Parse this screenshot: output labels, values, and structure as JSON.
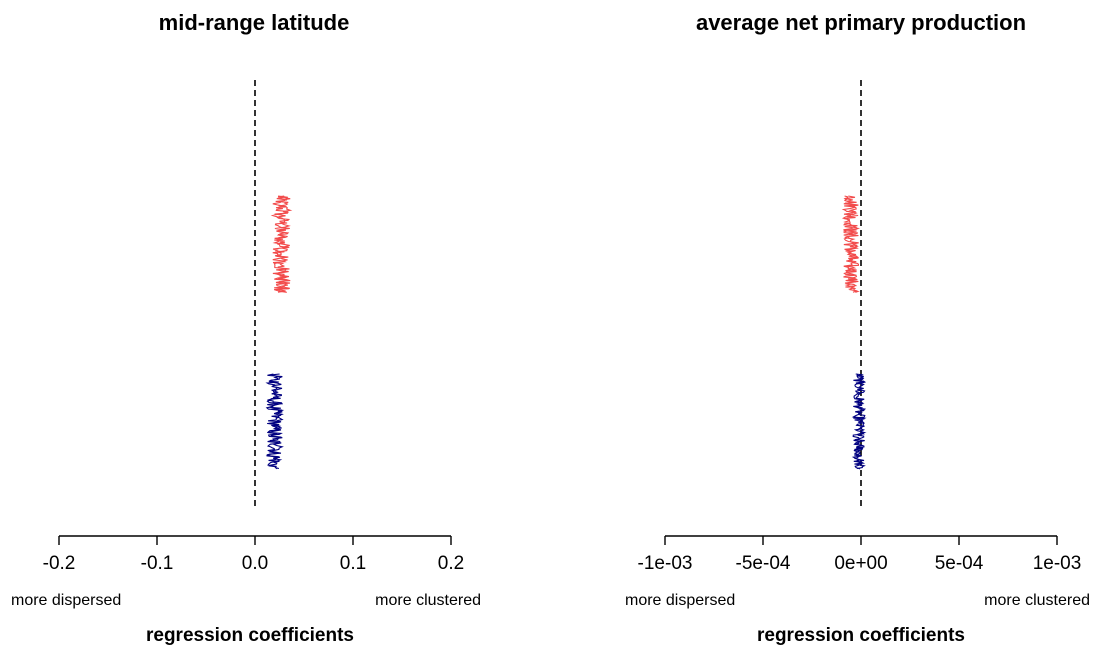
{
  "chart_data": [
    {
      "type": "scatter",
      "title": "mid-range latitude",
      "xlabel": "regression coefficients",
      "ylabel": "",
      "xlim": [
        -0.2,
        0.2
      ],
      "x_ticks": [
        -0.2,
        -0.1,
        0.0,
        0.1,
        0.2
      ],
      "x_tick_labels": [
        "-0.2",
        "-0.1",
        "0.0",
        "0.1",
        "0.2"
      ],
      "left_annotation": "more dispersed",
      "right_annotation": "more clustered",
      "reference_line_x": 0.0,
      "grid": false,
      "series": [
        {
          "color": "#f24a4a",
          "x_range": [
            0.018,
            0.036
          ],
          "x_center": 0.027,
          "y_position": "upper"
        },
        {
          "color": "#000080",
          "x_range": [
            0.012,
            0.028
          ],
          "x_center": 0.019,
          "y_position": "lower"
        }
      ]
    },
    {
      "type": "scatter",
      "title": "average net primary production",
      "xlabel": "regression coefficients",
      "ylabel": "",
      "xlim": [
        -0.001,
        0.001
      ],
      "x_ticks": [
        -0.001,
        -0.0005,
        0.0,
        0.0005,
        0.001
      ],
      "x_tick_labels": [
        "-1e-03",
        "-5e-04",
        "0e+00",
        "5e-04",
        "1e-03"
      ],
      "left_annotation": "more dispersed",
      "right_annotation": "more clustered",
      "reference_line_x": 0.0,
      "grid": false,
      "series": [
        {
          "color": "#f24a4a",
          "x_range": [
            -9e-05,
            -1e-05
          ],
          "x_center": -5e-05,
          "y_position": "upper"
        },
        {
          "color": "#000080",
          "x_range": [
            -4e-05,
            2e-05
          ],
          "x_center": -1e-05,
          "y_position": "lower"
        }
      ]
    }
  ]
}
